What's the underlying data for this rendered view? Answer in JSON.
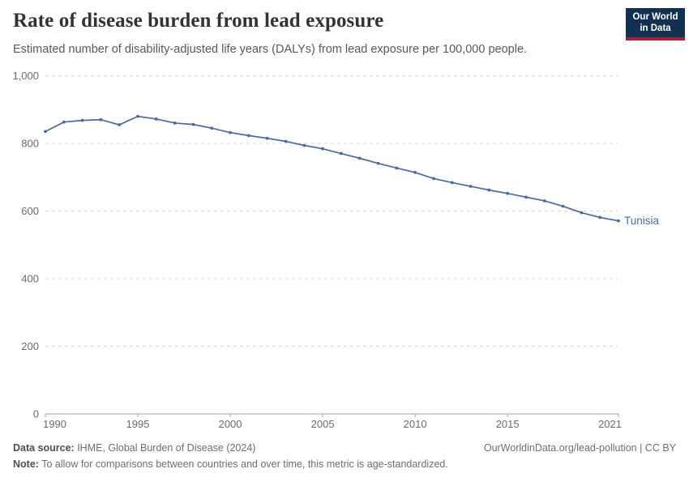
{
  "header": {
    "title": "Rate of disease burden from lead exposure",
    "subtitle": "Estimated number of disability-adjusted life years (DALYs) from lead exposure per 100,000 people.",
    "logo": {
      "line1": "Our World",
      "line2": "in Data",
      "bg_color": "#12304f",
      "accent_color": "#a0233a"
    }
  },
  "chart_data": {
    "type": "line",
    "title": "Rate of disease burden from lead exposure",
    "subtitle": "Estimated number of disability-adjusted life years (DALYs) from lead exposure per 100,000 people.",
    "xlabel": "",
    "ylabel": "",
    "x": [
      1990,
      1991,
      1992,
      1993,
      1994,
      1995,
      1996,
      1997,
      1998,
      1999,
      2000,
      2001,
      2002,
      2003,
      2004,
      2005,
      2006,
      2007,
      2008,
      2009,
      2010,
      2011,
      2012,
      2013,
      2014,
      2015,
      2016,
      2017,
      2018,
      2019,
      2020,
      2021
    ],
    "series": [
      {
        "name": "Tunisia",
        "color": "#4c6a9c",
        "values": [
          835,
          863,
          868,
          870,
          855,
          880,
          872,
          860,
          856,
          845,
          832,
          823,
          815,
          806,
          794,
          784,
          770,
          756,
          741,
          727,
          714,
          696,
          684,
          673,
          662,
          652,
          641,
          630,
          614,
          595,
          581,
          571
        ]
      }
    ],
    "xlim": [
      1990,
      2021
    ],
    "ylim": [
      0,
      1000
    ],
    "xticks": [
      1990,
      1995,
      2000,
      2005,
      2010,
      2015,
      2021
    ],
    "yticks": [
      0,
      200,
      400,
      600,
      800,
      1000
    ],
    "grid": "horizontal-dashed",
    "legend": "series-end-label",
    "axis_color": "#a5a5a5",
    "grid_color": "#d8d8d8",
    "tick_label_color": "#6b6b6b"
  },
  "footer": {
    "datasource_label": "Data source:",
    "datasource_text": " IHME, Global Burden of Disease (2024)",
    "rights": "OurWorldinData.org/lead-pollution | CC BY",
    "note_label": "Note:",
    "note_text": " To allow for comparisons between countries and over time, this metric is age-standardized."
  }
}
